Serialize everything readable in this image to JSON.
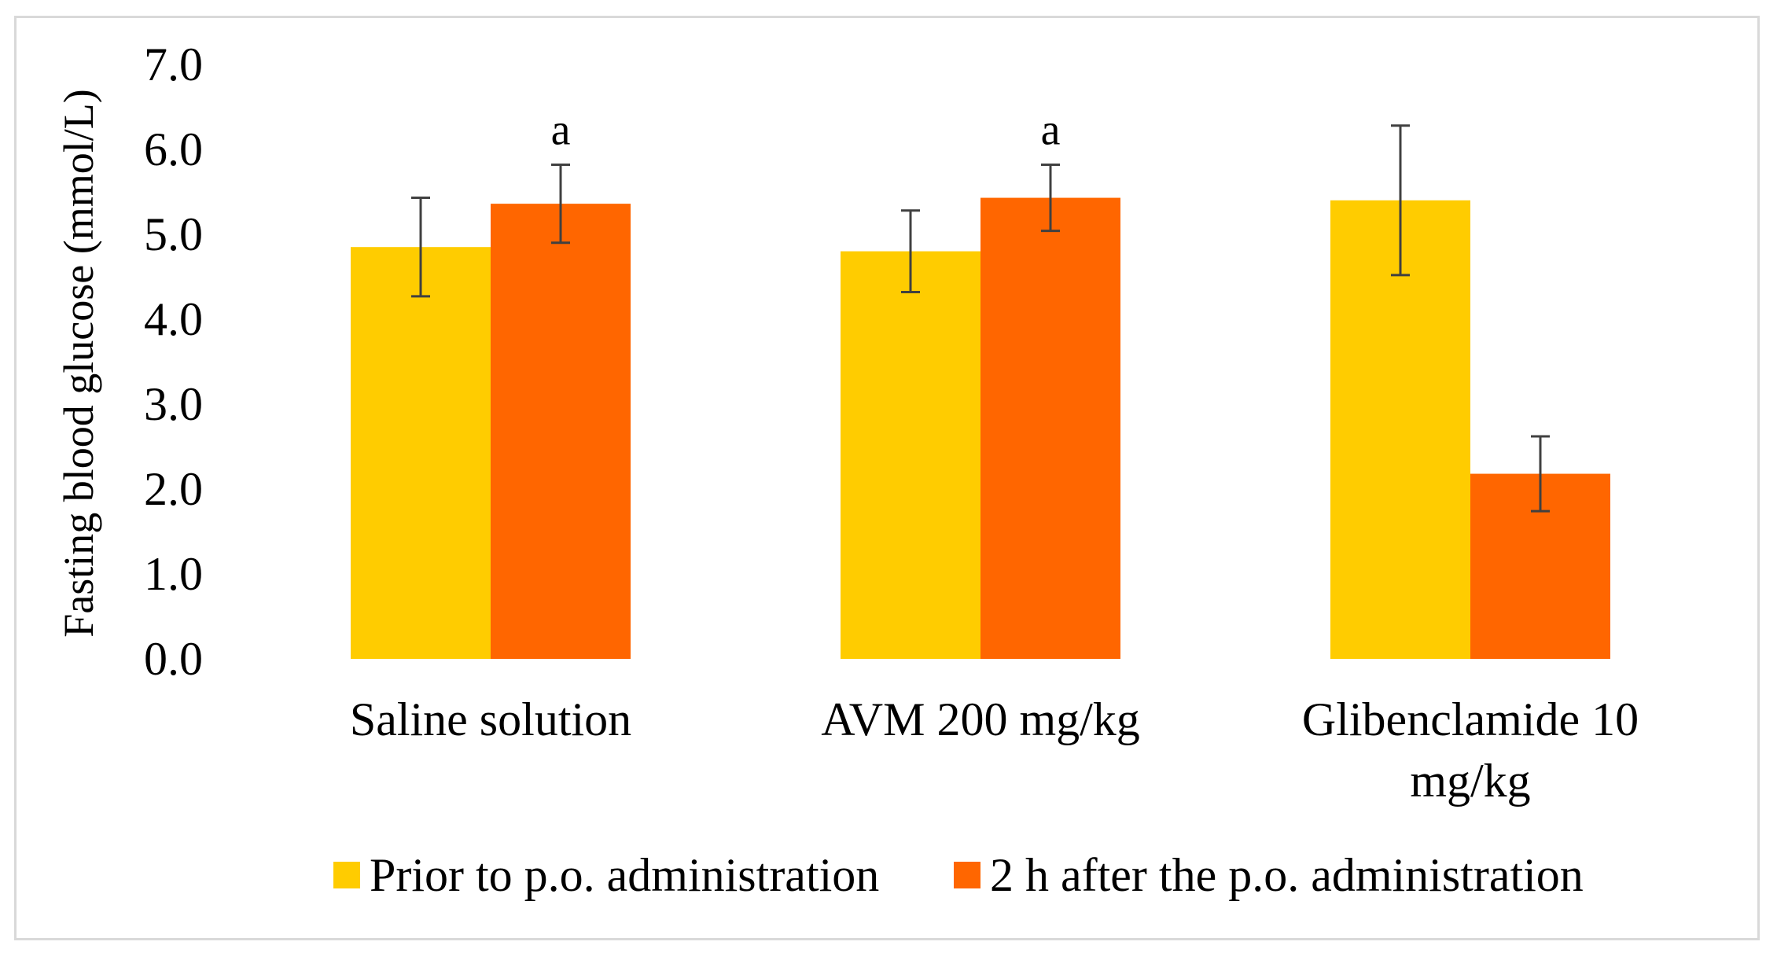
{
  "chart_data": {
    "type": "bar",
    "ylabel": "Fasting blood glucose (mmol/L)",
    "xlabel": "",
    "ylim": [
      0,
      7
    ],
    "yticks": [
      "0.0",
      "1.0",
      "2.0",
      "3.0",
      "4.0",
      "5.0",
      "6.0",
      "7.0"
    ],
    "grid": false,
    "legend_position": "bottom",
    "categories": [
      [
        "Saline solution"
      ],
      [
        "AVM 200 mg/kg"
      ],
      [
        "Glibenclamide 10",
        "mg/kg"
      ]
    ],
    "series": [
      {
        "name": "Prior to p.o. administration",
        "color": "#ffcc00",
        "values": [
          4.85,
          4.8,
          5.4
        ],
        "errors": [
          0.58,
          0.48,
          0.88
        ],
        "annotations": [
          "",
          "",
          ""
        ]
      },
      {
        "name": "2 h after the p.o. administration",
        "color": "#ff6600",
        "values": [
          5.36,
          5.43,
          2.18
        ],
        "errors": [
          0.46,
          0.39,
          0.44
        ],
        "annotations": [
          "a",
          "a",
          ""
        ]
      }
    ]
  }
}
